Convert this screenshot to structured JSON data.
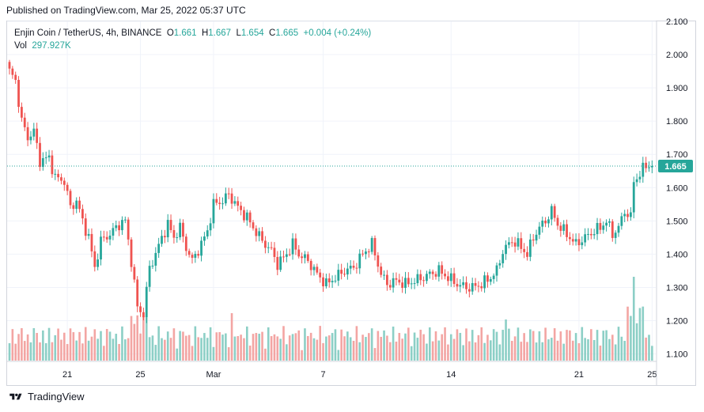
{
  "published": "Published on TradingView.com, Mar 25, 2022 05:37 UTC",
  "legend": {
    "symbol": "Enjin Coin / TetherUS, 4h, BINANCE",
    "o_label": "O",
    "o_value": "1.661",
    "h_label": "H",
    "h_value": "1.667",
    "l_label": "L",
    "l_value": "1.654",
    "c_label": "C",
    "c_value": "1.665",
    "change": "+0.004 (+0.24%)",
    "vol_label": "Vol",
    "vol_value": "297.927K"
  },
  "footer": {
    "brand": "TradingView"
  },
  "colors": {
    "up": "#26a69a",
    "down": "#ef5350",
    "vol_up": "#8ccfc6",
    "vol_down": "#f3a5a3",
    "grid": "#f0f3fa",
    "axis_text": "#131722",
    "price_label_bg": "#26a69a"
  },
  "chart_data": {
    "type": "candlestick",
    "symbol": "ENJUSDT",
    "interval": "4h",
    "y_axis": {
      "ticks": [
        "2.100",
        "2.000",
        "1.900",
        "1.800",
        "1.700",
        "1.600",
        "1.500",
        "1.400",
        "1.300",
        "1.200",
        "1.100"
      ],
      "range": [
        1.08,
        2.1
      ],
      "side": "right"
    },
    "x_axis": {
      "ticks": [
        {
          "label": "21",
          "idx": 19
        },
        {
          "label": "25",
          "idx": 43
        },
        {
          "label": "Mar",
          "idx": 67
        },
        {
          "label": "7",
          "idx": 103
        },
        {
          "label": "14",
          "idx": 145
        },
        {
          "label": "21",
          "idx": 187
        },
        {
          "label": "25",
          "idx": 211
        }
      ]
    },
    "last_price": "1.665",
    "last_price_value": 1.665,
    "close_keypoints": [
      [
        0,
        1.95
      ],
      [
        2,
        1.92
      ],
      [
        4,
        1.8
      ],
      [
        6,
        1.75
      ],
      [
        8,
        1.77
      ],
      [
        10,
        1.68
      ],
      [
        13,
        1.69
      ],
      [
        15,
        1.63
      ],
      [
        18,
        1.62
      ],
      [
        20,
        1.54
      ],
      [
        22,
        1.56
      ],
      [
        24,
        1.5
      ],
      [
        26,
        1.45
      ],
      [
        28,
        1.36
      ],
      [
        30,
        1.44
      ],
      [
        33,
        1.46
      ],
      [
        36,
        1.49
      ],
      [
        38,
        1.5
      ],
      [
        40,
        1.38
      ],
      [
        42,
        1.24
      ],
      [
        44,
        1.22
      ],
      [
        46,
        1.36
      ],
      [
        48,
        1.4
      ],
      [
        50,
        1.45
      ],
      [
        52,
        1.49
      ],
      [
        54,
        1.45
      ],
      [
        56,
        1.48
      ],
      [
        58,
        1.42
      ],
      [
        60,
        1.38
      ],
      [
        63,
        1.43
      ],
      [
        65,
        1.47
      ],
      [
        67,
        1.55
      ],
      [
        70,
        1.56
      ],
      [
        72,
        1.58
      ],
      [
        75,
        1.54
      ],
      [
        78,
        1.51
      ],
      [
        80,
        1.48
      ],
      [
        83,
        1.44
      ],
      [
        86,
        1.41
      ],
      [
        88,
        1.37
      ],
      [
        91,
        1.4
      ],
      [
        93,
        1.43
      ],
      [
        95,
        1.4
      ],
      [
        98,
        1.38
      ],
      [
        101,
        1.34
      ],
      [
        104,
        1.31
      ],
      [
        107,
        1.33
      ],
      [
        110,
        1.35
      ],
      [
        113,
        1.36
      ],
      [
        116,
        1.4
      ],
      [
        119,
        1.43
      ],
      [
        122,
        1.34
      ],
      [
        124,
        1.31
      ],
      [
        127,
        1.32
      ],
      [
        130,
        1.31
      ],
      [
        133,
        1.32
      ],
      [
        136,
        1.33
      ],
      [
        138,
        1.34
      ],
      [
        141,
        1.35
      ],
      [
        144,
        1.33
      ],
      [
        147,
        1.31
      ],
      [
        150,
        1.3
      ],
      [
        152,
        1.3
      ],
      [
        155,
        1.31
      ],
      [
        158,
        1.33
      ],
      [
        160,
        1.35
      ],
      [
        162,
        1.41
      ],
      [
        165,
        1.44
      ],
      [
        167,
        1.43
      ],
      [
        170,
        1.4
      ],
      [
        172,
        1.45
      ],
      [
        174,
        1.48
      ],
      [
        176,
        1.5
      ],
      [
        178,
        1.53
      ],
      [
        180,
        1.49
      ],
      [
        183,
        1.46
      ],
      [
        186,
        1.43
      ],
      [
        189,
        1.45
      ],
      [
        192,
        1.47
      ],
      [
        194,
        1.48
      ],
      [
        196,
        1.5
      ],
      [
        198,
        1.46
      ],
      [
        200,
        1.48
      ],
      [
        202,
        1.53
      ],
      [
        204,
        1.51
      ],
      [
        205,
        1.62
      ],
      [
        207,
        1.64
      ],
      [
        209,
        1.67
      ],
      [
        210,
        1.665
      ]
    ],
    "volume_profile": "alternating green/red bars, spikes near Feb 24 and Mar 24"
  }
}
